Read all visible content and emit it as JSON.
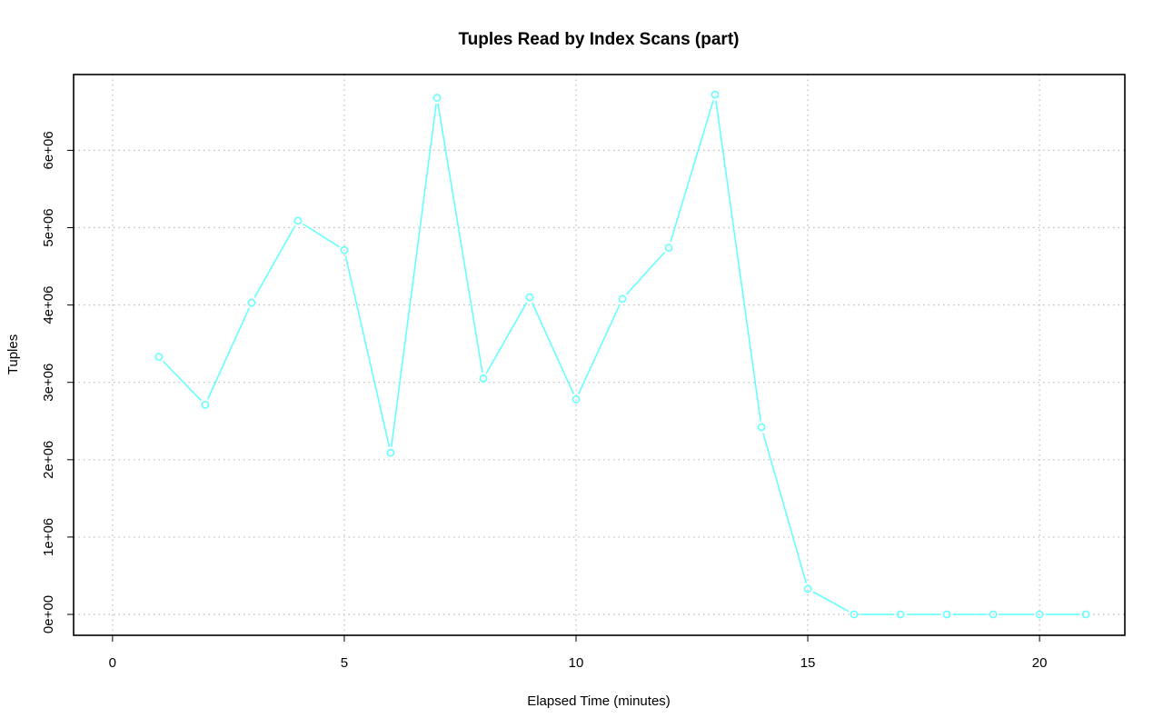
{
  "chart_data": {
    "type": "line",
    "title": "Tuples Read by Index Scans (part)",
    "xlabel": "Elapsed Time (minutes)",
    "ylabel": "Tuples",
    "xlim": [
      -0.84,
      21.84
    ],
    "ylim": [
      -270000,
      6980000
    ],
    "x_ticks": [
      0,
      5,
      10,
      15,
      20
    ],
    "x_tick_labels": [
      "0",
      "5",
      "10",
      "15",
      "20"
    ],
    "y_ticks": [
      0,
      1000000,
      2000000,
      3000000,
      4000000,
      5000000,
      6000000
    ],
    "y_tick_labels": [
      "0e+00",
      "1e+06",
      "2e+06",
      "3e+06",
      "4e+06",
      "5e+06",
      "6e+06"
    ],
    "grid": true,
    "series": [
      {
        "color": "#66ffff",
        "marker": "open-circle",
        "x": [
          1,
          2,
          3,
          4,
          5,
          6,
          7,
          8,
          9,
          10,
          11,
          12,
          13,
          14,
          15,
          16,
          17,
          18,
          19,
          20,
          21
        ],
        "y": [
          3330000,
          2710000,
          4030000,
          5090000,
          4710000,
          2090000,
          6680000,
          3050000,
          4100000,
          2780000,
          4080000,
          4740000,
          6720000,
          2420000,
          330000,
          0,
          0,
          0,
          0,
          0,
          0
        ]
      }
    ]
  }
}
